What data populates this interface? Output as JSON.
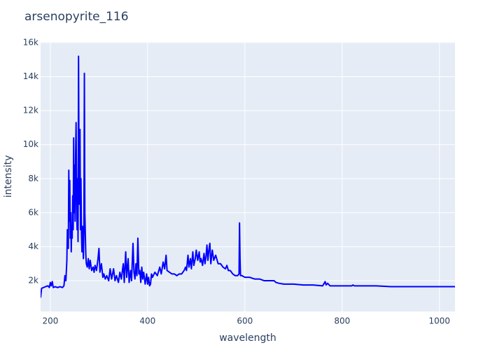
{
  "chart_data": {
    "type": "line",
    "title": "arsenopyrite_116",
    "x_label": "wavelength",
    "y_label": "intensity",
    "x": [
      180,
      182,
      186,
      190,
      195,
      198,
      200,
      202,
      204,
      206,
      210,
      215,
      220,
      225,
      228,
      230,
      232,
      234,
      235,
      236,
      237,
      238,
      239,
      240,
      241,
      242,
      243,
      244,
      245,
      246,
      247,
      248,
      249,
      250,
      251,
      252,
      253,
      254,
      255,
      256,
      257,
      258,
      259,
      260,
      261,
      262,
      263,
      264,
      265,
      266,
      267,
      268,
      269,
      270,
      271,
      272,
      273,
      274,
      276,
      278,
      280,
      282,
      285,
      288,
      290,
      292,
      295,
      298,
      300,
      302,
      305,
      308,
      310,
      313,
      316,
      320,
      323,
      326,
      330,
      333,
      336,
      340,
      343,
      346,
      350,
      352,
      355,
      357,
      360,
      362,
      365,
      367,
      370,
      372,
      374,
      376,
      378,
      380,
      382,
      384,
      386,
      388,
      390,
      392,
      395,
      398,
      400,
      402,
      404,
      406,
      408,
      410,
      415,
      420,
      425,
      428,
      432,
      435,
      438,
      440,
      445,
      450,
      455,
      460,
      465,
      470,
      475,
      478,
      480,
      483,
      485,
      488,
      490,
      493,
      495,
      498,
      500,
      503,
      506,
      508,
      510,
      513,
      516,
      518,
      520,
      522,
      524,
      526,
      528,
      530,
      533,
      536,
      540,
      545,
      550,
      555,
      560,
      563,
      566,
      570,
      575,
      580,
      585,
      588,
      589,
      590,
      591,
      594,
      600,
      610,
      620,
      630,
      640,
      650,
      660,
      664,
      670,
      680,
      700,
      720,
      740,
      760,
      765,
      767,
      770,
      775,
      800,
      820,
      822,
      825,
      850,
      870,
      900,
      950,
      1000,
      1032
    ],
    "series": [
      {
        "name": "intensity",
        "color": "#0000ff",
        "values": [
          1000,
          1550,
          1600,
          1650,
          1700,
          1600,
          1900,
          1700,
          1950,
          1600,
          1650,
          1600,
          1650,
          1600,
          1700,
          2300,
          2000,
          3200,
          5000,
          4200,
          3900,
          8500,
          5500,
          7900,
          4500,
          6000,
          3700,
          5200,
          4500,
          7000,
          5000,
          10400,
          6000,
          8800,
          5500,
          9500,
          11300,
          7000,
          5000,
          8000,
          4300,
          15200,
          9000,
          6500,
          10900,
          5000,
          8000,
          4800,
          3700,
          5200,
          4200,
          3300,
          4900,
          14200,
          6000,
          4700,
          3500,
          3000,
          2800,
          3300,
          2700,
          3200,
          2600,
          2800,
          2500,
          2900,
          2600,
          3300,
          3900,
          2500,
          3000,
          2200,
          2400,
          2100,
          2300,
          2000,
          2700,
          2100,
          2700,
          2000,
          2300,
          1900,
          2500,
          2100,
          3000,
          1900,
          3700,
          2200,
          3300,
          1900,
          2600,
          2000,
          4200,
          2500,
          2100,
          3000,
          2300,
          4500,
          2400,
          2600,
          1900,
          2800,
          2100,
          2500,
          1800,
          2400,
          1800,
          2200,
          1700,
          1800,
          2400,
          2200,
          2500,
          2300,
          2800,
          2400,
          3100,
          2700,
          3500,
          2600,
          2500,
          2400,
          2400,
          2300,
          2400,
          2400,
          2600,
          2800,
          2600,
          3500,
          2800,
          3300,
          2700,
          3700,
          2900,
          3300,
          3800,
          3200,
          3700,
          3100,
          3300,
          2900,
          3600,
          3000,
          3400,
          4100,
          3200,
          3800,
          4200,
          3000,
          3800,
          3200,
          3500,
          3000,
          3000,
          2800,
          2700,
          2900,
          2600,
          2600,
          2400,
          2300,
          2300,
          2400,
          5400,
          3400,
          2300,
          2300,
          2200,
          2200,
          2100,
          2100,
          2000,
          2000,
          2000,
          1900,
          1850,
          1800,
          1800,
          1750,
          1750,
          1700,
          1950,
          1750,
          1850,
          1700,
          1700,
          1700,
          1750,
          1700,
          1700,
          1700,
          1650,
          1650,
          1650,
          1650
        ]
      }
    ],
    "xlim": [
      180,
      1032
    ],
    "ylim": [
      190,
      16040
    ],
    "xticks": [
      200,
      400,
      600,
      800,
      1000
    ],
    "yticks": [
      {
        "value": 2000,
        "label": "2k"
      },
      {
        "value": 4000,
        "label": "4k"
      },
      {
        "value": 6000,
        "label": "6k"
      },
      {
        "value": 8000,
        "label": "8k"
      },
      {
        "value": 10000,
        "label": "10k"
      },
      {
        "value": 12000,
        "label": "12k"
      },
      {
        "value": 14000,
        "label": "14k"
      },
      {
        "value": 16000,
        "label": "16k"
      }
    ],
    "grid": true
  }
}
